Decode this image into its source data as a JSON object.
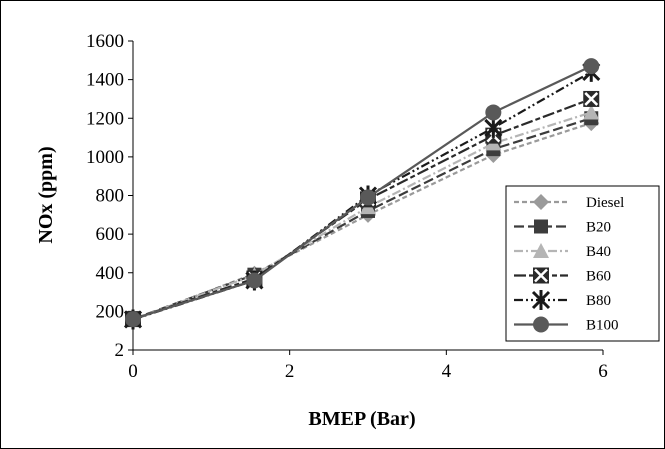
{
  "chart_data": {
    "type": "line",
    "title": "",
    "xlabel": "BMEP (Bar)",
    "ylabel": "NOx (ppm)",
    "xlim": [
      0,
      6
    ],
    "ylim": [
      0,
      1600
    ],
    "x_ticks": [
      "0",
      "2",
      "4",
      "6"
    ],
    "y_ticks": [
      "2",
      "200",
      "400",
      "600",
      "800",
      "1000",
      "1200",
      "1400",
      "1600"
    ],
    "grid": false,
    "legend_position": "right",
    "x": [
      0,
      1.55,
      3,
      4.6,
      5.85
    ],
    "series": [
      {
        "name": "Diesel",
        "values": [
          155,
          395,
          700,
          1010,
          1175
        ],
        "color": "#9a9a9a",
        "dash": "short",
        "marker": "diamond"
      },
      {
        "name": "B20",
        "values": [
          160,
          390,
          720,
          1040,
          1200
        ],
        "color": "#3c3c3c",
        "dash": "long",
        "marker": "square"
      },
      {
        "name": "B40",
        "values": [
          158,
          388,
          740,
          1070,
          1230
        ],
        "color": "#b5b5b5",
        "dash": "dashdot",
        "marker": "triangle"
      },
      {
        "name": "B60",
        "values": [
          160,
          370,
          780,
          1110,
          1300
        ],
        "color": "#2a2a2a",
        "dash": "longshort",
        "marker": "xsquare"
      },
      {
        "name": "B80",
        "values": [
          158,
          360,
          800,
          1150,
          1440
        ],
        "color": "#1a1a1a",
        "dash": "dashdotdot",
        "marker": "star"
      },
      {
        "name": "B100",
        "values": [
          160,
          360,
          790,
          1230,
          1470
        ],
        "color": "#595959",
        "dash": "solid",
        "marker": "circle"
      }
    ]
  }
}
